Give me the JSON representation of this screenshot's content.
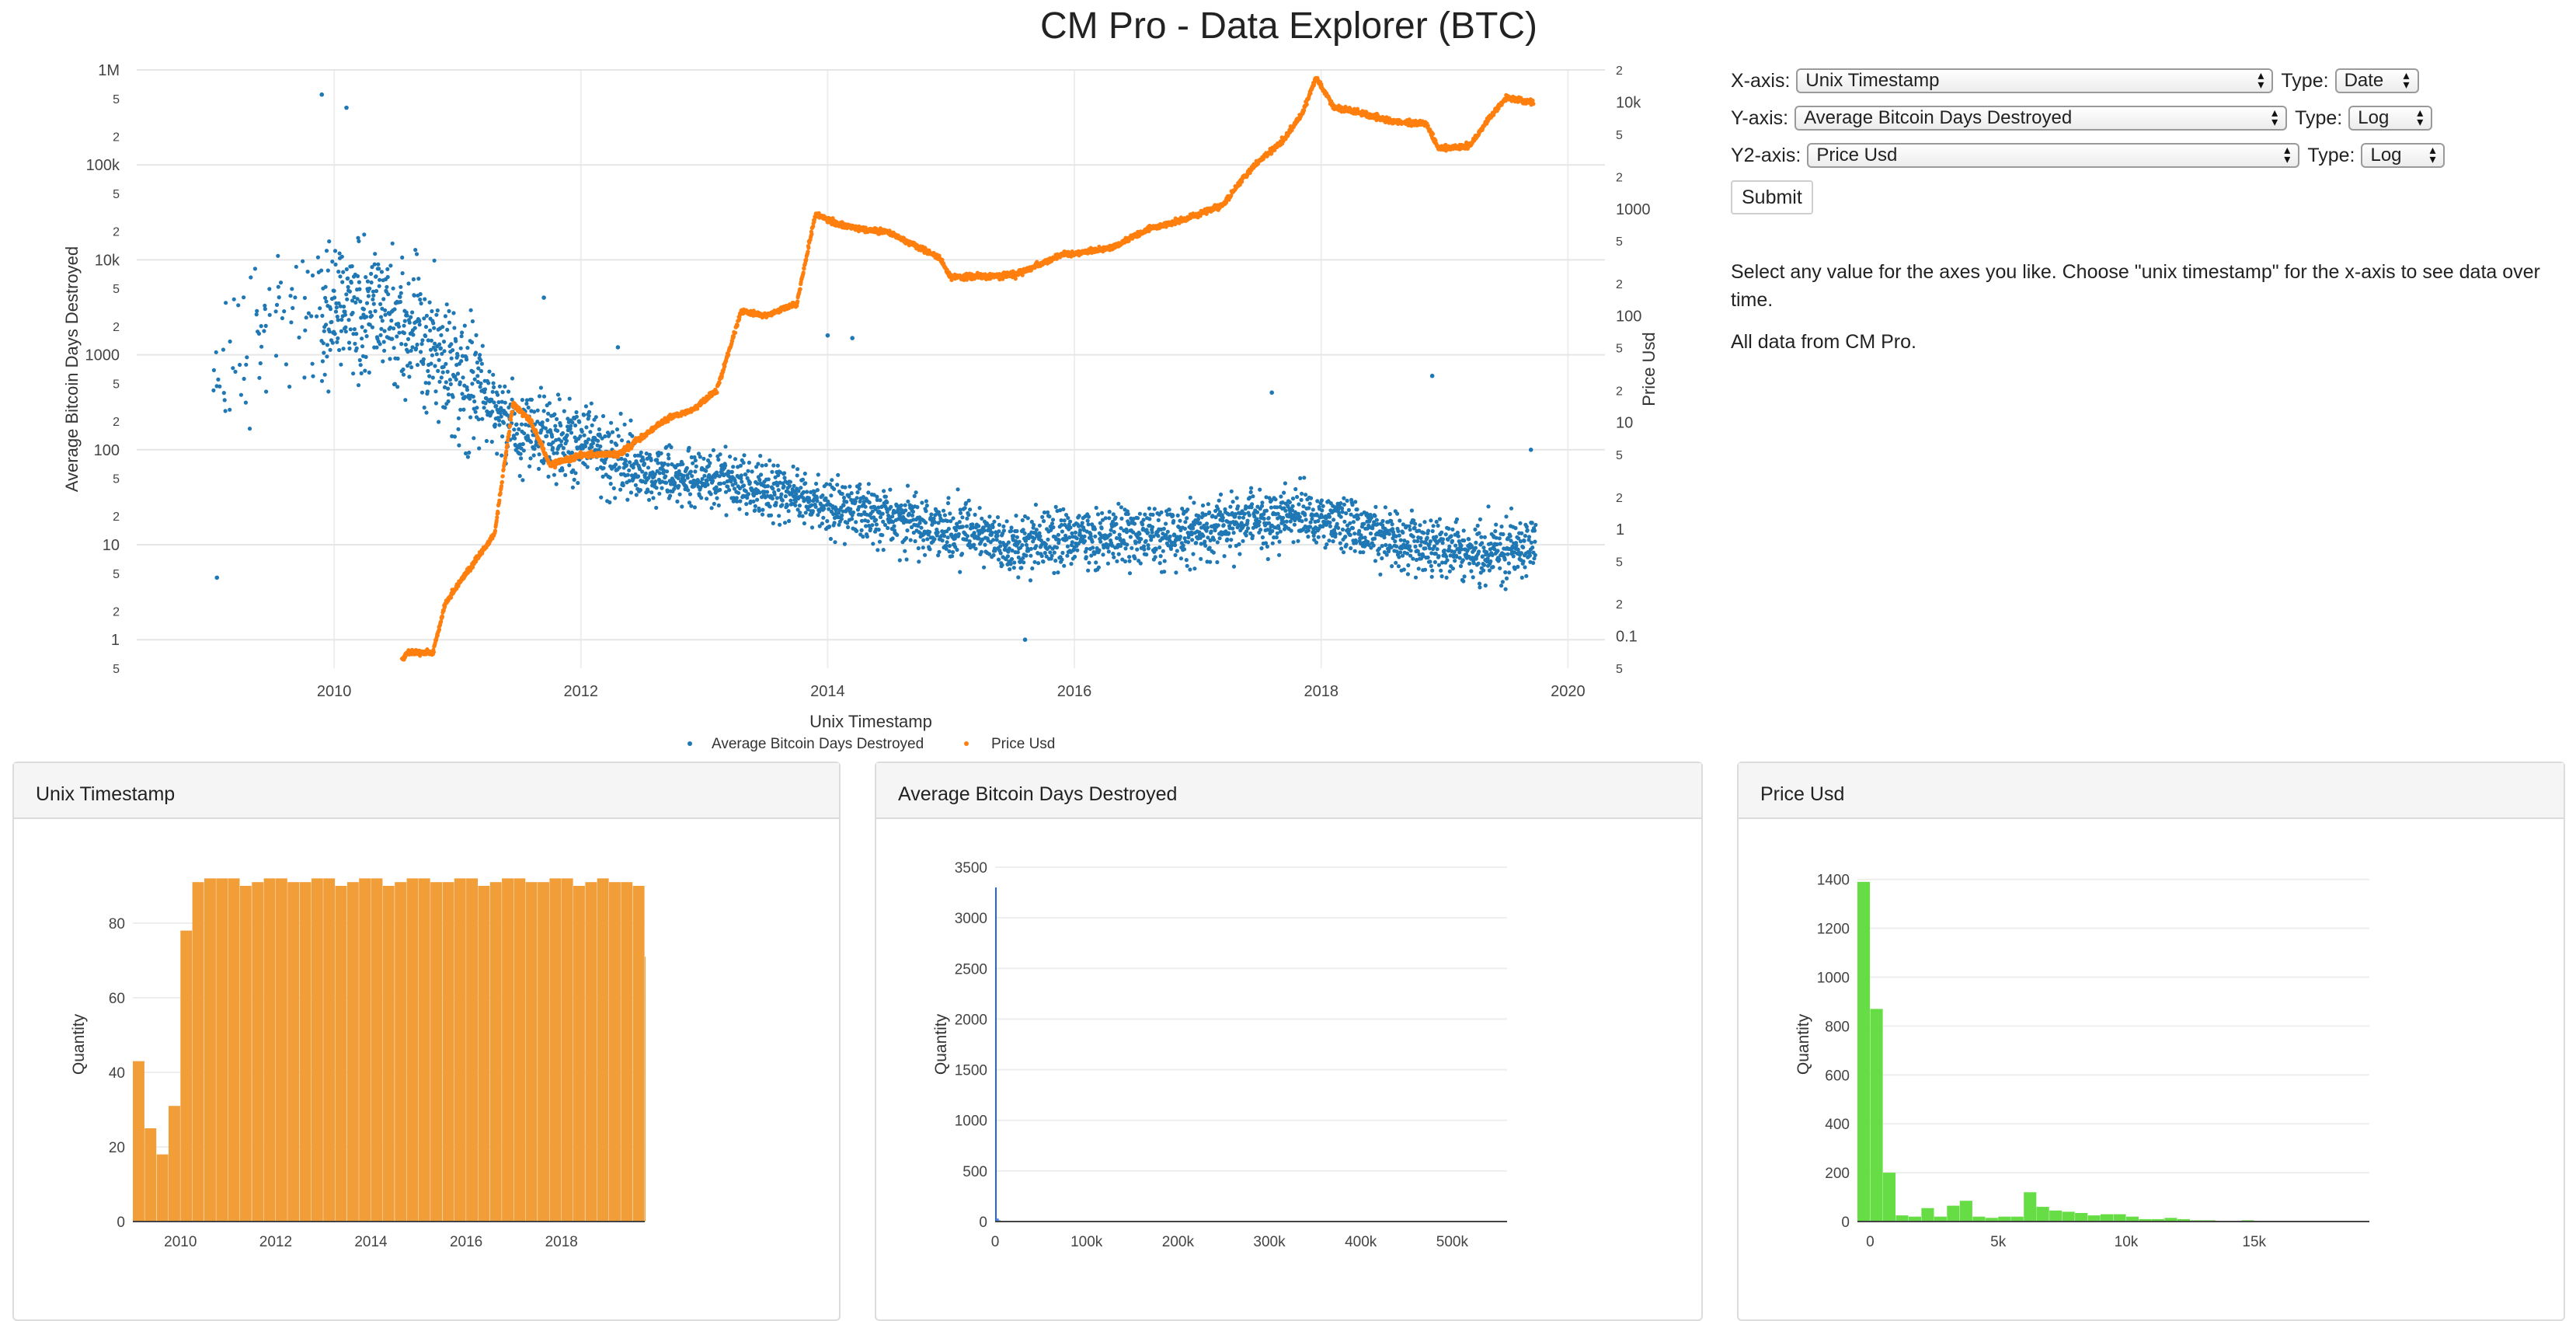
{
  "title": "CM Pro - Data Explorer (BTC)",
  "controls": {
    "x_axis": {
      "label": "X-axis:",
      "value": "Unix Timestamp",
      "type_label": "Type:",
      "type_value": "Date"
    },
    "y_axis": {
      "label": "Y-axis:",
      "value": "Average Bitcoin Days Destroyed",
      "type_label": "Type:",
      "type_value": "Log"
    },
    "y2_axis": {
      "label": "Y2-axis:",
      "value": "Price Usd",
      "type_label": "Type:",
      "type_value": "Log"
    },
    "submit_label": "Submit",
    "help_text": "Select any value for the axes you like. Choose \"unix timestamp\" for the x-axis to see data over time.",
    "source_text": "All data from CM Pro."
  },
  "colors": {
    "series_days": "#1f77b4",
    "series_price": "#ff7f0e",
    "hist_time": "#f19d38",
    "hist_days": "#2266dd",
    "hist_price": "#66dd44"
  },
  "chart_data": [
    {
      "type": "scatter",
      "xlabel": "Unix Timestamp",
      "ylabel": "Average Bitcoin Days Destroyed",
      "y2label": "Price Usd",
      "yscale": "log",
      "y2scale": "log",
      "xlim": [
        2008.4,
        2020.3
      ],
      "ylim": [
        0.5,
        1000000
      ],
      "y2lim": [
        0.05,
        20000
      ],
      "x_ticks": [
        "2010",
        "2012",
        "2014",
        "2016",
        "2018",
        "2020"
      ],
      "y_ticks": [
        "1",
        "10",
        "100",
        "1000",
        "10k",
        "100k",
        "1M"
      ],
      "y2_ticks": [
        "0.1",
        "1",
        "10",
        "100",
        "1000",
        "10k"
      ],
      "legend": {
        "placement": "bottom-center",
        "entries": [
          "Average Bitcoin Days Destroyed",
          "Price Usd"
        ]
      },
      "series": [
        {
          "name": "Average Bitcoin Days Destroyed",
          "axis": "y",
          "trend": [
            [
              2009.05,
              500
            ],
            [
              2009.5,
              2000
            ],
            [
              2010.0,
              3000
            ],
            [
              2010.5,
              2500
            ],
            [
              2011.0,
              700
            ],
            [
              2011.5,
              150
            ],
            [
              2012.0,
              120
            ],
            [
              2012.5,
              60
            ],
            [
              2013.0,
              50
            ],
            [
              2013.5,
              40
            ],
            [
              2014.0,
              25
            ],
            [
              2014.5,
              20
            ],
            [
              2015.0,
              15
            ],
            [
              2015.5,
              10
            ],
            [
              2016.0,
              12
            ],
            [
              2016.5,
              12
            ],
            [
              2017.0,
              13
            ],
            [
              2017.5,
              20
            ],
            [
              2018.0,
              20
            ],
            [
              2018.5,
              12
            ],
            [
              2019.0,
              9
            ],
            [
              2019.5,
              9
            ],
            [
              2019.72,
              10
            ]
          ],
          "extremes": [
            [
              2009.05,
              4.5
            ],
            [
              2009.9,
              550000
            ],
            [
              2010.1,
              400000
            ],
            [
              2011.7,
              4000
            ],
            [
              2012.3,
              1200
            ],
            [
              2014.0,
              1600
            ],
            [
              2014.2,
              1500
            ],
            [
              2015.6,
              1
            ],
            [
              2017.6,
              400
            ],
            [
              2018.9,
              600
            ],
            [
              2019.7,
              100
            ]
          ]
        },
        {
          "name": "Price Usd",
          "axis": "y2",
          "points": [
            [
              2010.55,
              0.06
            ],
            [
              2010.6,
              0.07
            ],
            [
              2010.8,
              0.07
            ],
            [
              2010.9,
              0.2
            ],
            [
              2011.0,
              0.3
            ],
            [
              2011.3,
              0.9
            ],
            [
              2011.45,
              15
            ],
            [
              2011.6,
              10
            ],
            [
              2011.75,
              4
            ],
            [
              2012.0,
              5
            ],
            [
              2012.3,
              5
            ],
            [
              2012.7,
              11
            ],
            [
              2012.9,
              13
            ],
            [
              2013.1,
              20
            ],
            [
              2013.3,
              110
            ],
            [
              2013.5,
              100
            ],
            [
              2013.75,
              130
            ],
            [
              2013.9,
              900
            ],
            [
              2014.1,
              700
            ],
            [
              2014.5,
              600
            ],
            [
              2014.9,
              350
            ],
            [
              2015.0,
              230
            ],
            [
              2015.5,
              240
            ],
            [
              2015.9,
              370
            ],
            [
              2016.3,
              430
            ],
            [
              2016.6,
              650
            ],
            [
              2016.9,
              800
            ],
            [
              2017.2,
              1100
            ],
            [
              2017.45,
              2500
            ],
            [
              2017.7,
              4500
            ],
            [
              2017.85,
              8000
            ],
            [
              2017.96,
              17000
            ],
            [
              2018.1,
              9000
            ],
            [
              2018.3,
              8000
            ],
            [
              2018.6,
              6500
            ],
            [
              2018.85,
              6300
            ],
            [
              2018.95,
              3700
            ],
            [
              2019.2,
              3900
            ],
            [
              2019.4,
              8000
            ],
            [
              2019.5,
              11000
            ],
            [
              2019.72,
              10000
            ]
          ]
        }
      ]
    },
    {
      "type": "bar",
      "title": "Unix Timestamp",
      "ylabel": "Quantity",
      "ylim": [
        0,
        95
      ],
      "y_ticks": [
        "0",
        "20",
        "40",
        "60",
        "80"
      ],
      "x_ticks": [
        "2010",
        "2012",
        "2014",
        "2016",
        "2018"
      ],
      "xlim": [
        2009.0,
        2019.75
      ],
      "bin_width": 0.25,
      "values": [
        43,
        25,
        18,
        31,
        78,
        91,
        92,
        92,
        92,
        90,
        91,
        92,
        92,
        91,
        91,
        92,
        92,
        90,
        91,
        92,
        92,
        90,
        91,
        92,
        92,
        91,
        91,
        92,
        92,
        90,
        91,
        92,
        92,
        91,
        91,
        92,
        92,
        90,
        91,
        92,
        91,
        91,
        90,
        71
      ]
    },
    {
      "type": "bar",
      "title": "Average Bitcoin Days Destroyed",
      "ylabel": "Quantity",
      "ylim": [
        0,
        3500
      ],
      "y_ticks": [
        "0",
        "500",
        "1000",
        "1500",
        "2000",
        "2500",
        "3000",
        "3500"
      ],
      "x_ticks": [
        "0",
        "100k",
        "200k",
        "300k",
        "400k",
        "500k"
      ],
      "xlim": [
        0,
        560000
      ],
      "bin_width": 2000,
      "values": [
        3300,
        30,
        12,
        6,
        3,
        2
      ]
    },
    {
      "type": "bar",
      "title": "Price Usd",
      "ylabel": "Quantity",
      "ylim": [
        0,
        1450
      ],
      "y_ticks": [
        "0",
        "200",
        "400",
        "600",
        "800",
        "1000",
        "1200",
        "1400"
      ],
      "x_ticks": [
        "0",
        "5k",
        "10k",
        "15k"
      ],
      "xlim": [
        -500,
        19500
      ],
      "bin_width": 500,
      "values": [
        1390,
        870,
        200,
        25,
        20,
        55,
        20,
        65,
        85,
        20,
        15,
        20,
        20,
        120,
        60,
        45,
        40,
        35,
        25,
        30,
        30,
        20,
        10,
        10,
        15,
        10,
        5,
        5,
        3,
        3,
        5,
        3,
        2,
        3,
        3,
        2,
        2,
        2
      ]
    }
  ]
}
